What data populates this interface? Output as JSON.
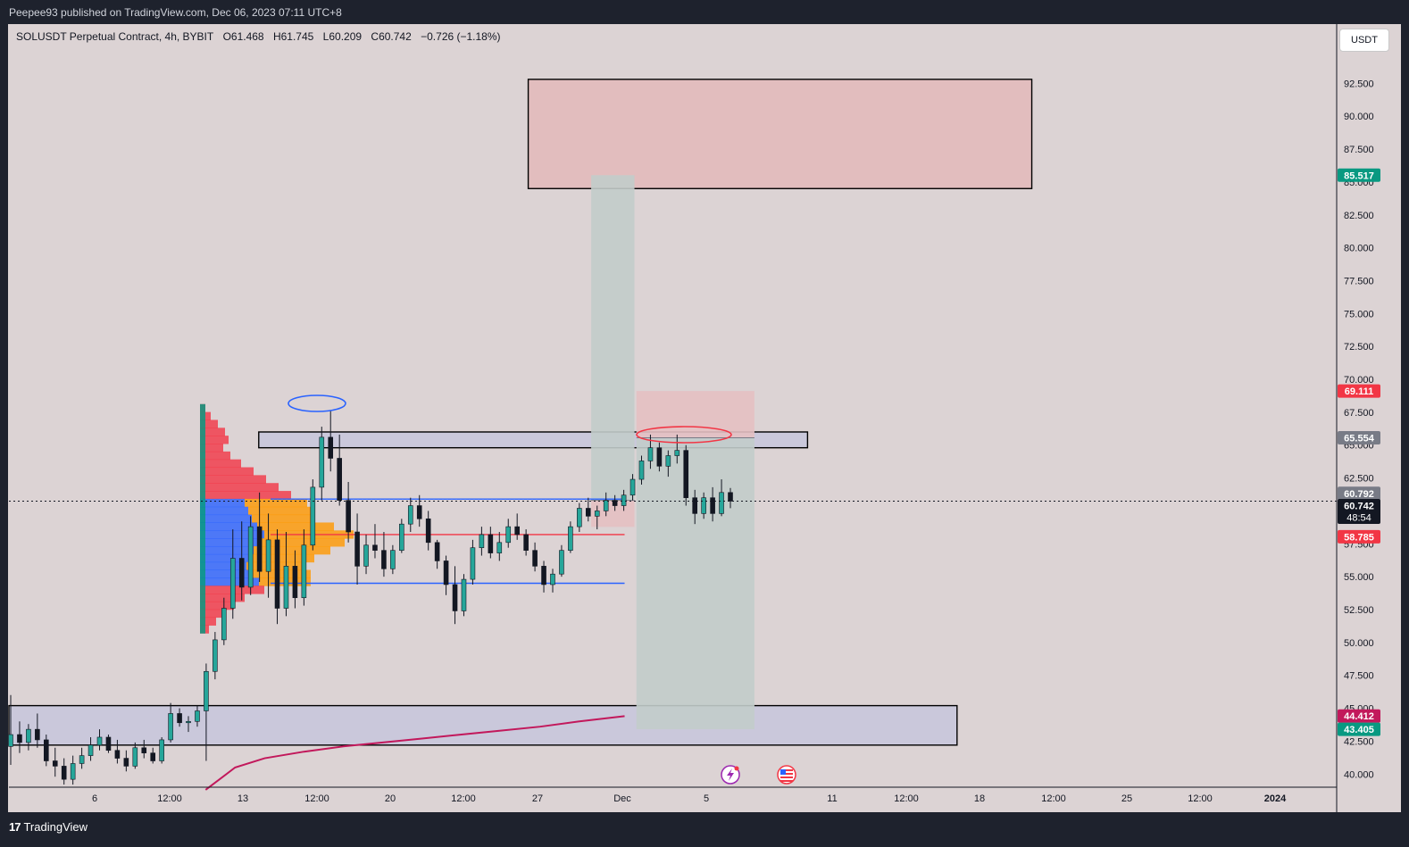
{
  "header": {
    "published": "Peepee93 published on TradingView.com, Dec 06, 2023 07:11 UTC+8"
  },
  "legend": {
    "symbol": "SOLUSDT Perpetual Contract, 4h, BYBIT",
    "open": "O61.468",
    "high": "H61.745",
    "low": "L60.209",
    "close": "C60.742",
    "change": "−0.726 (−1.18%)"
  },
  "currency_button": "USDT",
  "footer": {
    "brand": "TradingView",
    "brand_mark": "17"
  },
  "chart_data": {
    "type": "candlestick",
    "title": "SOLUSDT Perpetual Contract, 4h, BYBIT",
    "y_axis": {
      "ticks": [
        "92.500",
        "90.000",
        "87.500",
        "85.000",
        "82.500",
        "80.000",
        "77.500",
        "75.000",
        "72.500",
        "70.000",
        "67.500",
        "65.000",
        "62.500",
        "57.500",
        "55.000",
        "52.500",
        "50.000",
        "47.500",
        "45.000",
        "42.500",
        "40.000"
      ],
      "range": [
        39.0,
        97.0
      ],
      "position": "right"
    },
    "x_axis": {
      "ticks": [
        "6",
        "12:00",
        "13",
        "12:00",
        "20",
        "12:00",
        "27",
        "Dec",
        "5",
        "11",
        "12:00",
        "18",
        "12:00",
        "25",
        "12:00",
        "2024"
      ]
    },
    "price_labels": [
      {
        "text": "85.517",
        "value": 85.517,
        "color": "#089981"
      },
      {
        "text": "69.111",
        "value": 69.111,
        "color": "#f23645"
      },
      {
        "text": "65.554",
        "value": 65.554,
        "color": "#787b86"
      },
      {
        "text": "60.792",
        "value": 60.792,
        "color": "#787b86"
      },
      {
        "text": "60.742",
        "value": 60.742,
        "color": "#131722",
        "sub": "48:54"
      },
      {
        "text": "58.785",
        "value": 58.785,
        "color": "#f23645"
      },
      {
        "text": "44.412",
        "value": 44.412,
        "color": "#c2185b"
      },
      {
        "text": "43.405",
        "value": 43.405,
        "color": "#089981"
      }
    ],
    "last_price": 60.742,
    "zones": [
      {
        "name": "supply-zone",
        "from_day": 26.4,
        "to_day": 52.0,
        "low": 84.5,
        "high": 92.8,
        "fill": "#e3b8ba"
      },
      {
        "name": "resistance-band",
        "from_day": 12.7,
        "to_day": 40.6,
        "low": 64.8,
        "high": 66.0,
        "fill": "#c7c5dc"
      },
      {
        "name": "demand-zone",
        "from_day": 0,
        "to_day": 48.2,
        "low": 42.2,
        "high": 45.2,
        "fill": "#c7c5dc"
      }
    ],
    "positions": [
      {
        "name": "short-position-1",
        "from_day": 29.6,
        "to_day": 31.8,
        "entry": 60.8,
        "stop": 58.785,
        "target": 85.517,
        "profit_fill": "#c2ccca",
        "loss_fill": "#e4c0c2"
      },
      {
        "name": "short-position-2",
        "from_day": 31.9,
        "to_day": 37.9,
        "entry": 65.554,
        "stop": 69.111,
        "target": 43.405,
        "profit_fill": "#c2ccca",
        "loss_fill": "#e4c0c2"
      }
    ],
    "levels": [
      {
        "name": "vah-line",
        "value": 60.9,
        "from_day": 13.3,
        "to_day": 31.3,
        "color": "#2962ff"
      },
      {
        "name": "poc-line",
        "value": 58.2,
        "from_day": 13.3,
        "to_day": 31.3,
        "color": "#f23645"
      },
      {
        "name": "val-line",
        "value": 54.5,
        "from_day": 13.3,
        "to_day": 31.3,
        "color": "#2962ff"
      }
    ],
    "ma_line": {
      "name": "moving-average",
      "color": "#c2185b",
      "points": [
        [
          10.0,
          38.8
        ],
        [
          11.5,
          40.5
        ],
        [
          13.0,
          41.2
        ],
        [
          15.0,
          41.7
        ],
        [
          17.0,
          42.1
        ],
        [
          19.0,
          42.4
        ],
        [
          21.0,
          42.7
        ],
        [
          23.0,
          43.0
        ],
        [
          25.0,
          43.3
        ],
        [
          27.0,
          43.6
        ],
        [
          29.0,
          44.0
        ],
        [
          31.3,
          44.4
        ]
      ]
    },
    "candles": [
      {
        "o": 42.1,
        "h": 46.0,
        "l": 40.7,
        "c": 43.0
      },
      {
        "o": 43.0,
        "h": 44.0,
        "l": 41.6,
        "c": 42.4
      },
      {
        "o": 42.4,
        "h": 43.8,
        "l": 41.8,
        "c": 43.4
      },
      {
        "o": 43.4,
        "h": 44.6,
        "l": 42.0,
        "c": 42.6
      },
      {
        "o": 42.6,
        "h": 43.0,
        "l": 40.6,
        "c": 41.0
      },
      {
        "o": 41.0,
        "h": 42.0,
        "l": 39.8,
        "c": 40.6
      },
      {
        "o": 40.6,
        "h": 41.2,
        "l": 39.2,
        "c": 39.6
      },
      {
        "o": 39.6,
        "h": 41.4,
        "l": 39.2,
        "c": 40.8
      },
      {
        "o": 40.8,
        "h": 42.0,
        "l": 40.4,
        "c": 41.4
      },
      {
        "o": 41.4,
        "h": 42.8,
        "l": 41.0,
        "c": 42.2
      },
      {
        "o": 42.2,
        "h": 43.4,
        "l": 41.8,
        "c": 42.8
      },
      {
        "o": 42.8,
        "h": 43.0,
        "l": 41.6,
        "c": 41.8
      },
      {
        "o": 41.8,
        "h": 42.6,
        "l": 40.8,
        "c": 41.2
      },
      {
        "o": 41.2,
        "h": 41.8,
        "l": 40.2,
        "c": 40.6
      },
      {
        "o": 40.6,
        "h": 42.4,
        "l": 40.4,
        "c": 42.0
      },
      {
        "o": 42.0,
        "h": 42.6,
        "l": 41.2,
        "c": 41.6
      },
      {
        "o": 41.6,
        "h": 42.0,
        "l": 40.8,
        "c": 41.0
      },
      {
        "o": 41.0,
        "h": 42.8,
        "l": 40.8,
        "c": 42.6
      },
      {
        "o": 42.6,
        "h": 45.4,
        "l": 42.4,
        "c": 44.6
      },
      {
        "o": 44.6,
        "h": 45.0,
        "l": 43.6,
        "c": 43.9
      },
      {
        "o": 43.9,
        "h": 44.4,
        "l": 43.2,
        "c": 44.0
      },
      {
        "o": 44.0,
        "h": 45.2,
        "l": 43.6,
        "c": 44.8
      },
      {
        "o": 44.8,
        "h": 48.4,
        "l": 41.0,
        "c": 47.8
      },
      {
        "o": 47.8,
        "h": 50.8,
        "l": 47.2,
        "c": 50.2
      },
      {
        "o": 50.2,
        "h": 53.4,
        "l": 49.8,
        "c": 52.6
      },
      {
        "o": 52.6,
        "h": 58.6,
        "l": 51.8,
        "c": 56.4
      },
      {
        "o": 56.4,
        "h": 59.2,
        "l": 53.2,
        "c": 54.2
      },
      {
        "o": 54.2,
        "h": 59.6,
        "l": 53.6,
        "c": 58.8
      },
      {
        "o": 58.8,
        "h": 61.4,
        "l": 54.6,
        "c": 55.4
      },
      {
        "o": 55.4,
        "h": 59.8,
        "l": 53.4,
        "c": 57.8
      },
      {
        "o": 57.8,
        "h": 58.6,
        "l": 51.4,
        "c": 52.6
      },
      {
        "o": 52.6,
        "h": 58.4,
        "l": 52.0,
        "c": 55.8
      },
      {
        "o": 55.8,
        "h": 57.0,
        "l": 52.6,
        "c": 53.4
      },
      {
        "o": 53.4,
        "h": 58.6,
        "l": 52.8,
        "c": 57.4
      },
      {
        "o": 57.4,
        "h": 62.4,
        "l": 57.0,
        "c": 61.8
      },
      {
        "o": 61.8,
        "h": 66.4,
        "l": 60.8,
        "c": 65.6
      },
      {
        "o": 65.6,
        "h": 67.6,
        "l": 63.0,
        "c": 64.0
      },
      {
        "o": 64.0,
        "h": 65.8,
        "l": 60.4,
        "c": 60.8
      },
      {
        "o": 60.8,
        "h": 62.2,
        "l": 57.6,
        "c": 58.4
      },
      {
        "o": 58.4,
        "h": 59.8,
        "l": 54.4,
        "c": 55.8
      },
      {
        "o": 55.8,
        "h": 58.2,
        "l": 55.2,
        "c": 57.4
      },
      {
        "o": 57.4,
        "h": 59.0,
        "l": 56.4,
        "c": 57.0
      },
      {
        "o": 57.0,
        "h": 58.4,
        "l": 55.0,
        "c": 55.6
      },
      {
        "o": 55.6,
        "h": 57.4,
        "l": 55.2,
        "c": 57.0
      },
      {
        "o": 57.0,
        "h": 59.4,
        "l": 56.8,
        "c": 59.0
      },
      {
        "o": 59.0,
        "h": 61.0,
        "l": 58.4,
        "c": 60.4
      },
      {
        "o": 60.4,
        "h": 61.2,
        "l": 58.8,
        "c": 59.4
      },
      {
        "o": 59.4,
        "h": 60.0,
        "l": 57.0,
        "c": 57.6
      },
      {
        "o": 57.6,
        "h": 57.8,
        "l": 55.6,
        "c": 56.2
      },
      {
        "o": 56.2,
        "h": 56.6,
        "l": 53.6,
        "c": 54.4
      },
      {
        "o": 54.4,
        "h": 55.8,
        "l": 51.4,
        "c": 52.4
      },
      {
        "o": 52.4,
        "h": 55.2,
        "l": 52.0,
        "c": 54.8
      },
      {
        "o": 54.8,
        "h": 57.8,
        "l": 54.4,
        "c": 57.2
      },
      {
        "o": 57.2,
        "h": 58.8,
        "l": 56.6,
        "c": 58.2
      },
      {
        "o": 58.2,
        "h": 58.8,
        "l": 56.4,
        "c": 56.8
      },
      {
        "o": 56.8,
        "h": 58.4,
        "l": 56.2,
        "c": 57.6
      },
      {
        "o": 57.6,
        "h": 59.4,
        "l": 57.2,
        "c": 58.8
      },
      {
        "o": 58.8,
        "h": 59.8,
        "l": 57.8,
        "c": 58.2
      },
      {
        "o": 58.2,
        "h": 58.6,
        "l": 56.6,
        "c": 57.0
      },
      {
        "o": 57.0,
        "h": 57.6,
        "l": 55.4,
        "c": 55.8
      },
      {
        "o": 55.8,
        "h": 56.2,
        "l": 53.8,
        "c": 54.4
      },
      {
        "o": 54.4,
        "h": 55.6,
        "l": 53.8,
        "c": 55.2
      },
      {
        "o": 55.2,
        "h": 57.4,
        "l": 55.0,
        "c": 57.0
      },
      {
        "o": 57.0,
        "h": 59.2,
        "l": 56.8,
        "c": 58.8
      },
      {
        "o": 58.8,
        "h": 60.6,
        "l": 58.4,
        "c": 60.2
      },
      {
        "o": 60.2,
        "h": 61.0,
        "l": 59.2,
        "c": 59.6
      },
      {
        "o": 59.6,
        "h": 60.4,
        "l": 58.6,
        "c": 60.0
      },
      {
        "o": 60.0,
        "h": 61.4,
        "l": 59.6,
        "c": 60.8
      },
      {
        "o": 60.8,
        "h": 61.2,
        "l": 60.0,
        "c": 60.4
      },
      {
        "o": 60.4,
        "h": 61.6,
        "l": 60.0,
        "c": 61.2
      },
      {
        "o": 61.2,
        "h": 62.8,
        "l": 60.8,
        "c": 62.4
      },
      {
        "o": 62.4,
        "h": 64.2,
        "l": 62.0,
        "c": 63.8
      },
      {
        "o": 63.8,
        "h": 65.8,
        "l": 63.2,
        "c": 64.8
      },
      {
        "o": 64.8,
        "h": 65.2,
        "l": 63.0,
        "c": 63.4
      },
      {
        "o": 63.4,
        "h": 64.6,
        "l": 62.6,
        "c": 64.2
      },
      {
        "o": 64.2,
        "h": 65.8,
        "l": 63.6,
        "c": 64.6
      },
      {
        "o": 64.6,
        "h": 65.0,
        "l": 60.4,
        "c": 61.0
      },
      {
        "o": 61.0,
        "h": 61.6,
        "l": 59.0,
        "c": 59.8
      },
      {
        "o": 59.8,
        "h": 61.4,
        "l": 59.4,
        "c": 61.0
      },
      {
        "o": 61.0,
        "h": 61.8,
        "l": 59.2,
        "c": 59.8
      },
      {
        "o": 59.8,
        "h": 62.4,
        "l": 59.6,
        "c": 61.4
      },
      {
        "o": 61.4,
        "h": 61.745,
        "l": 60.209,
        "c": 60.742
      }
    ],
    "volume_profile": {
      "rows": [
        {
          "value": 67.8,
          "w1": 6,
          "w2": 0,
          "c1": "#f23645"
        },
        {
          "value": 67.2,
          "w1": 12,
          "w2": 0,
          "c1": "#f23645"
        },
        {
          "value": 66.6,
          "w1": 20,
          "w2": 0,
          "c1": "#f23645"
        },
        {
          "value": 66.0,
          "w1": 28,
          "w2": 0,
          "c1": "#f23645"
        },
        {
          "value": 65.4,
          "w1": 32,
          "w2": 0,
          "c1": "#f23645"
        },
        {
          "value": 64.8,
          "w1": 26,
          "w2": 0,
          "c1": "#f23645"
        },
        {
          "value": 64.2,
          "w1": 34,
          "w2": 0,
          "c1": "#f23645"
        },
        {
          "value": 63.6,
          "w1": 46,
          "w2": 0,
          "c1": "#f23645"
        },
        {
          "value": 63.0,
          "w1": 60,
          "w2": 0,
          "c1": "#f23645"
        },
        {
          "value": 62.4,
          "w1": 74,
          "w2": 0,
          "c1": "#f23645"
        },
        {
          "value": 61.8,
          "w1": 88,
          "w2": 0,
          "c1": "#f23645"
        },
        {
          "value": 61.2,
          "w1": 102,
          "w2": 0,
          "c1": "#f23645"
        },
        {
          "value": 60.6,
          "w1": 50,
          "w2": 70,
          "c1": "#2962ff"
        },
        {
          "value": 60.0,
          "w1": 54,
          "w2": 74,
          "c1": "#2962ff"
        },
        {
          "value": 59.4,
          "w1": 58,
          "w2": 70,
          "c1": "#2962ff"
        },
        {
          "value": 58.8,
          "w1": 64,
          "w2": 86,
          "c1": "#2962ff"
        },
        {
          "value": 58.2,
          "w1": 72,
          "w2": 100,
          "c1": "#2962ff"
        },
        {
          "value": 57.6,
          "w1": 66,
          "w2": 96,
          "c1": "#2962ff"
        },
        {
          "value": 57.0,
          "w1": 60,
          "w2": 86,
          "c1": "#2962ff"
        },
        {
          "value": 56.4,
          "w1": 56,
          "w2": 72,
          "c1": "#2962ff"
        },
        {
          "value": 55.8,
          "w1": 52,
          "w2": 64,
          "c1": "#2962ff"
        },
        {
          "value": 55.2,
          "w1": 58,
          "w2": 66,
          "c1": "#2962ff"
        },
        {
          "value": 54.6,
          "w1": 66,
          "w2": 58,
          "c1": "#2962ff"
        },
        {
          "value": 54.0,
          "w1": 72,
          "w2": 0,
          "c1": "#f23645"
        },
        {
          "value": 53.4,
          "w1": 50,
          "w2": 0,
          "c1": "#f23645"
        },
        {
          "value": 52.8,
          "w1": 38,
          "w2": 0,
          "c1": "#f23645"
        },
        {
          "value": 52.2,
          "w1": 28,
          "w2": 0,
          "c1": "#f23645"
        },
        {
          "value": 51.6,
          "w1": 18,
          "w2": 0,
          "c1": "#f23645"
        },
        {
          "value": 51.0,
          "w1": 10,
          "w2": 0,
          "c1": "#f23645"
        }
      ]
    }
  }
}
